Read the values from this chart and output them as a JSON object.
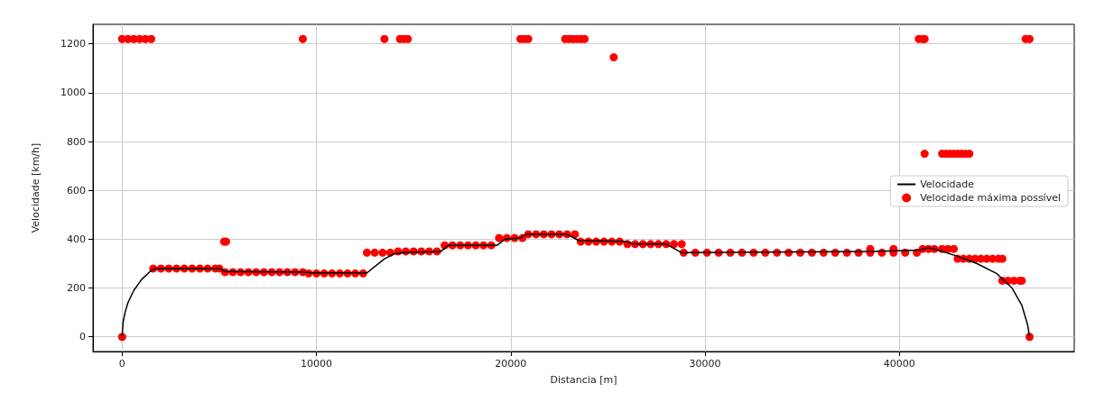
{
  "chart_data": {
    "type": "line",
    "xlabel": "Distancia [m]",
    "ylabel": "Velocidade [km/h]",
    "xlim": [
      -1500,
      49000
    ],
    "xticks": [
      0,
      10000,
      20000,
      30000,
      40000
    ],
    "ylim": [
      -60,
      1280
    ],
    "yticks": [
      0,
      200,
      400,
      600,
      800,
      1000,
      1200
    ],
    "grid": true,
    "legend": "right",
    "series": [
      {
        "name": "Velocidade",
        "color": "#000000",
        "marker": "none",
        "line_style": "solid",
        "x": [
          0,
          50,
          150,
          300,
          600,
          1000,
          1400,
          1700,
          5000,
          5300,
          9500,
          9700,
          12600,
          13500,
          14000,
          14500,
          16400,
          16800,
          19300,
          19700,
          20500,
          20800,
          22900,
          23500,
          26000,
          26300,
          28000,
          28800,
          38500,
          41000,
          41500,
          42000,
          43000,
          44000,
          45000,
          45800,
          46300,
          46600,
          46700
        ],
        "values": [
          0,
          60,
          100,
          140,
          190,
          235,
          265,
          280,
          280,
          268,
          265,
          262,
          262,
          320,
          340,
          345,
          350,
          375,
          375,
          400,
          405,
          420,
          420,
          395,
          390,
          380,
          380,
          345,
          350,
          355,
          365,
          355,
          330,
          300,
          260,
          200,
          130,
          50,
          0
        ]
      },
      {
        "name": "Velocidade máxima possível",
        "type": "scatter",
        "color": "#ff0000",
        "marker": "circle",
        "x": [
          0,
          0,
          300,
          600,
          900,
          1200,
          1500,
          1600,
          2000,
          2400,
          2800,
          3200,
          3600,
          4000,
          4400,
          4800,
          5000,
          5250,
          5350,
          5300,
          5700,
          6100,
          6500,
          6900,
          7300,
          7700,
          8100,
          8500,
          8900,
          9300,
          9300,
          9600,
          10000,
          10400,
          10800,
          11200,
          11600,
          12000,
          12400,
          12600,
          13000,
          13400,
          13800,
          13500,
          14300,
          14500,
          14700,
          14200,
          14600,
          15000,
          15400,
          15800,
          16200,
          16600,
          17000,
          17400,
          17800,
          18200,
          18600,
          19000,
          19400,
          19800,
          20200,
          20600,
          20500,
          20700,
          20900,
          20900,
          21300,
          21700,
          22100,
          22500,
          22900,
          23300,
          22800,
          23000,
          23200,
          23400,
          23600,
          23800,
          23600,
          24000,
          24400,
          24800,
          25200,
          25600,
          25300,
          26000,
          26400,
          26800,
          27200,
          27600,
          28000,
          28400,
          28800,
          28900,
          29500,
          30100,
          30700,
          31300,
          31900,
          32500,
          33100,
          33700,
          34300,
          34900,
          35500,
          36100,
          36700,
          37300,
          37900,
          38500,
          39100,
          39700,
          40300,
          40900,
          38500,
          39700,
          41000,
          41200,
          41300,
          41300,
          42200,
          42400,
          42600,
          42800,
          43000,
          43200,
          43400,
          43600,
          41200,
          41500,
          41800,
          42200,
          42500,
          42800,
          43000,
          43300,
          43600,
          43900,
          44200,
          44500,
          44800,
          45100,
          45300,
          45300,
          45600,
          45900,
          46200,
          46300,
          46500,
          46700,
          46700
        ],
        "values": [
          0,
          1220,
          1220,
          1220,
          1220,
          1220,
          1220,
          280,
          280,
          280,
          280,
          280,
          280,
          280,
          280,
          280,
          280,
          390,
          390,
          265,
          265,
          265,
          265,
          265,
          265,
          265,
          265,
          265,
          265,
          265,
          1220,
          260,
          260,
          260,
          260,
          260,
          260,
          260,
          260,
          345,
          345,
          345,
          345,
          1220,
          1220,
          1220,
          1220,
          350,
          350,
          350,
          350,
          350,
          350,
          375,
          375,
          375,
          375,
          375,
          375,
          375,
          405,
          405,
          405,
          405,
          1220,
          1220,
          1220,
          420,
          420,
          420,
          420,
          420,
          420,
          420,
          1220,
          1220,
          1220,
          1220,
          1220,
          1220,
          390,
          390,
          390,
          390,
          390,
          390,
          1145,
          380,
          380,
          380,
          380,
          380,
          380,
          380,
          380,
          345,
          345,
          345,
          345,
          345,
          345,
          345,
          345,
          345,
          345,
          345,
          345,
          345,
          345,
          345,
          345,
          345,
          345,
          345,
          345,
          345,
          360,
          360,
          1220,
          1220,
          1220,
          750,
          750,
          750,
          750,
          750,
          750,
          750,
          750,
          750,
          360,
          360,
          360,
          360,
          360,
          360,
          320,
          320,
          320,
          320,
          320,
          320,
          320,
          320,
          320,
          230,
          230,
          230,
          230,
          230,
          1220,
          1220,
          0
        ]
      }
    ]
  }
}
